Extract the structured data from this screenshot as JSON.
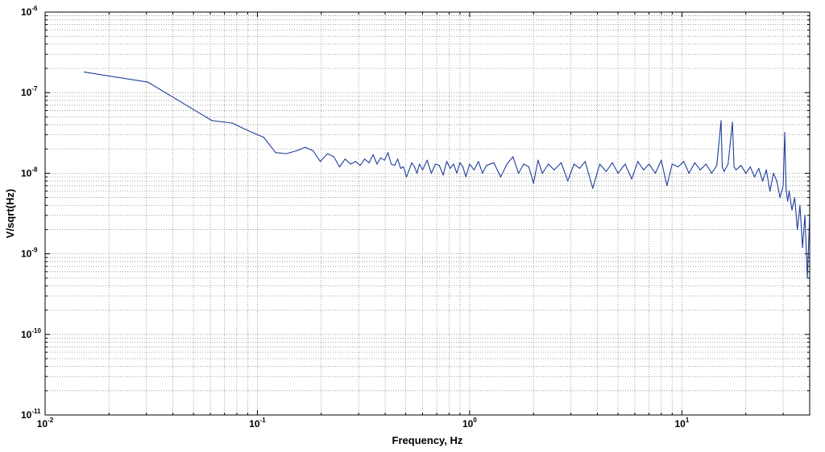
{
  "chart_data": {
    "type": "line",
    "title": "",
    "xlabel": "Frequency, Hz",
    "ylabel": "V/sqrt(Hz)",
    "xscale": "log",
    "yscale": "log",
    "xlim": [
      0.01,
      40
    ],
    "ylim": [
      1e-11,
      1e-06
    ],
    "grid": true,
    "grid_style": "dotted",
    "x_ticks": [
      {
        "value": 0.01,
        "base": "10",
        "exp": "-2"
      },
      {
        "value": 0.1,
        "base": "10",
        "exp": "-1"
      },
      {
        "value": 1,
        "base": "10",
        "exp": "0"
      },
      {
        "value": 10,
        "base": "10",
        "exp": "1"
      }
    ],
    "y_ticks": [
      {
        "value": 1e-11,
        "base": "10",
        "exp": "-11"
      },
      {
        "value": 1e-10,
        "base": "10",
        "exp": "-10"
      },
      {
        "value": 1e-09,
        "base": "10",
        "exp": "-9"
      },
      {
        "value": 1e-08,
        "base": "10",
        "exp": "-8"
      },
      {
        "value": 1e-07,
        "base": "10",
        "exp": "-7"
      },
      {
        "value": 1e-06,
        "base": "10",
        "exp": "-6"
      }
    ],
    "series": [
      {
        "color": "#1f3f9a",
        "x": [
          0.0153,
          0.0305,
          0.061,
          0.076,
          0.092,
          0.107,
          0.122,
          0.137,
          0.153,
          0.168,
          0.183,
          0.198,
          0.214,
          0.229,
          0.244,
          0.259,
          0.275,
          0.29,
          0.305,
          0.32,
          0.336,
          0.351,
          0.366,
          0.381,
          0.397,
          0.412,
          0.427,
          0.443,
          0.458,
          0.473,
          0.488,
          0.504,
          0.519,
          0.534,
          0.55,
          0.565,
          0.58,
          0.6,
          0.63,
          0.66,
          0.69,
          0.72,
          0.75,
          0.78,
          0.81,
          0.84,
          0.87,
          0.9,
          0.93,
          0.96,
          1.0,
          1.05,
          1.1,
          1.15,
          1.2,
          1.3,
          1.4,
          1.5,
          1.6,
          1.7,
          1.8,
          1.9,
          2.0,
          2.1,
          2.2,
          2.35,
          2.5,
          2.7,
          2.9,
          3.1,
          3.3,
          3.5,
          3.8,
          4.1,
          4.4,
          4.7,
          5.0,
          5.4,
          5.8,
          6.2,
          6.6,
          7.0,
          7.5,
          8.0,
          8.5,
          9.0,
          9.6,
          10.2,
          10.8,
          11.5,
          12.2,
          13.0,
          13.8,
          14.6,
          15.3,
          15.5,
          15.8,
          16.5,
          17.3,
          17.6,
          18.0,
          19.0,
          20.0,
          21.0,
          22.0,
          23.0,
          24.0,
          25.0,
          26.0,
          27.0,
          28.0,
          29.0,
          30.0,
          30.5,
          31.0,
          31.5,
          32.0,
          33.0,
          34.0,
          35.0,
          36.0,
          37.0,
          38.0,
          39.0,
          40.0
        ],
        "values": [
          1.8e-07,
          1.35e-07,
          4.5e-08,
          4.2e-08,
          3.3e-08,
          2.8e-08,
          1.8e-08,
          1.75e-08,
          1.9e-08,
          2.1e-08,
          1.9e-08,
          1.4e-08,
          1.75e-08,
          1.6e-08,
          1.2e-08,
          1.5e-08,
          1.3e-08,
          1.4e-08,
          1.25e-08,
          1.5e-08,
          1.35e-08,
          1.7e-08,
          1.3e-08,
          1.55e-08,
          1.45e-08,
          1.8e-08,
          1.3e-08,
          1.25e-08,
          1.5e-08,
          1.15e-08,
          1.2e-08,
          9e-09,
          1.1e-08,
          1.35e-08,
          1.2e-08,
          1e-08,
          1.3e-08,
          1.1e-08,
          1.45e-08,
          1e-08,
          1.3e-08,
          1.25e-08,
          9.5e-09,
          1.4e-08,
          1.15e-08,
          1.3e-08,
          1e-08,
          1.35e-08,
          1.2e-08,
          9e-09,
          1.3e-08,
          1.1e-08,
          1.4e-08,
          1e-08,
          1.25e-08,
          1.35e-08,
          9e-09,
          1.3e-08,
          1.6e-08,
          1e-08,
          1.3e-08,
          1.2e-08,
          7.5e-09,
          1.45e-08,
          1e-08,
          1.3e-08,
          1.1e-08,
          1.35e-08,
          8e-09,
          1.3e-08,
          1.15e-08,
          1.4e-08,
          6.5e-09,
          1.3e-08,
          1.05e-08,
          1.35e-08,
          1e-08,
          1.3e-08,
          8.5e-09,
          1.4e-08,
          1.1e-08,
          1.3e-08,
          1e-08,
          1.45e-08,
          7e-09,
          1.3e-08,
          1.2e-08,
          1.4e-08,
          1e-08,
          1.35e-08,
          1.1e-08,
          1.3e-08,
          1e-08,
          1.25e-08,
          4.5e-08,
          1.2e-08,
          1.05e-08,
          1.3e-08,
          4.3e-08,
          1.2e-08,
          1.1e-08,
          1.25e-08,
          1e-08,
          1.2e-08,
          9e-09,
          1.15e-08,
          8e-09,
          1.1e-08,
          6e-09,
          1e-08,
          8e-09,
          5e-09,
          7e-09,
          3.2e-08,
          6e-09,
          4.5e-09,
          6e-09,
          3.5e-09,
          5e-09,
          2e-09,
          4e-09,
          1.2e-09,
          3e-09,
          5e-10,
          3e-09
        ]
      }
    ]
  }
}
